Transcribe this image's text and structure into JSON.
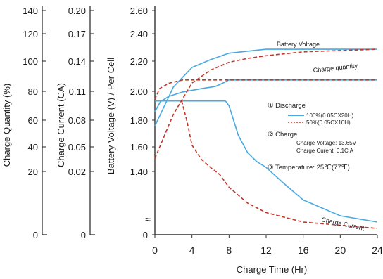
{
  "chart_data": {
    "type": "line",
    "title": "",
    "xlabel": "Charge Time (Hr)",
    "x_ticks": [
      "0",
      "4",
      "8",
      "12",
      "16",
      "20",
      "24"
    ],
    "xlim": [
      0,
      24
    ],
    "y_axes": [
      {
        "label": "Charge Quantity (%)",
        "ticks": [
          "0",
          "20",
          "40",
          "60",
          "80",
          "100",
          "120",
          "140"
        ]
      },
      {
        "label": "Charge Current (CA)",
        "ticks": [
          "0",
          "0.02",
          "0.05",
          "0.08",
          "0.11",
          "0.14",
          "0.17",
          "0.20"
        ]
      },
      {
        "label": "Battery Voltage (V) / Per Cell",
        "ticks": [
          "0",
          "1.40",
          "1.60",
          "1.80",
          "2.00",
          "2.20",
          "2.40",
          "2.60"
        ],
        "scale_break": "≈"
      }
    ],
    "annotations": {
      "battery_voltage": "Battery Voltage",
      "charge_quantity": "Charge quantity",
      "charge_current": "Charge Current",
      "discharge_title": "① Discharge",
      "discharge_100": "100%(0.05CX20H)",
      "discharge_50": "50%(0.05CX10H)",
      "charge_title": "② Charge",
      "charge_voltage": "Charge Voltage: 13.65V",
      "charge_current_spec": "Charge Curent:  0.1C A",
      "temperature": "③ Temperature: 25℃(77℉)"
    },
    "series": [
      {
        "name": "100%(0.05CX20H)",
        "style": "solid",
        "color": "#4aa9df",
        "curves": {
          "battery_voltage_volts": [
            [
              0,
              1.95
            ],
            [
              0.6,
              2.04
            ],
            [
              1.5,
              2.09
            ],
            [
              3,
              2.13
            ],
            [
              5,
              2.16
            ],
            [
              6.5,
              2.18
            ],
            [
              7.3,
              2.21
            ],
            [
              8,
              2.24
            ],
            [
              12,
              2.24
            ],
            [
              16,
              2.24
            ],
            [
              20,
              2.24
            ],
            [
              24,
              2.24
            ]
          ],
          "charge_quantity_percent": [
            [
              0,
              55
            ],
            [
              2,
              85
            ],
            [
              4,
              100
            ],
            [
              6,
              106
            ],
            [
              7.6,
              110
            ],
            [
              8,
              111
            ],
            [
              12,
              114
            ],
            [
              16,
              114
            ],
            [
              20,
              114
            ],
            [
              24,
              114
            ]
          ],
          "charge_current_ca": [
            [
              0,
              0.1
            ],
            [
              7.6,
              0.1
            ],
            [
              8,
              0.095
            ],
            [
              9,
              0.063
            ],
            [
              10,
              0.043
            ],
            [
              11,
              0.032
            ],
            [
              12,
              0.025
            ],
            [
              14,
              0.016
            ],
            [
              16,
              0.011
            ],
            [
              20,
              0.006
            ],
            [
              24,
              0.004
            ]
          ]
        }
      },
      {
        "name": "50%(0.05CX10H)",
        "style": "dashed",
        "color": "#c0392b",
        "curves": {
          "battery_voltage_volts": [
            [
              0,
              2.06
            ],
            [
              0.5,
              2.16
            ],
            [
              1.5,
              2.21
            ],
            [
              3,
              2.24
            ],
            [
              4,
              2.24
            ],
            [
              6,
              2.24
            ],
            [
              8,
              2.24
            ],
            [
              12,
              2.24
            ],
            [
              16,
              2.24
            ],
            [
              20,
              2.24
            ],
            [
              24,
              2.24
            ]
          ],
          "charge_quantity_percent": [
            [
              0,
              30
            ],
            [
              2,
              64
            ],
            [
              4,
              88
            ],
            [
              6,
              98
            ],
            [
              8,
              104
            ],
            [
              10,
              107
            ],
            [
              12,
              109
            ],
            [
              16,
              112
            ],
            [
              20,
              113
            ],
            [
              24,
              114
            ]
          ],
          "charge_current_ca": [
            [
              2.9,
              0.1
            ],
            [
              3.5,
              0.077
            ],
            [
              4,
              0.052
            ],
            [
              5,
              0.035
            ],
            [
              6,
              0.025
            ],
            [
              7,
              0.019
            ],
            [
              8,
              0.015
            ],
            [
              10,
              0.01
            ],
            [
              12,
              0.007
            ],
            [
              16,
              0.004
            ],
            [
              20,
              0.003
            ],
            [
              24,
              0.002
            ]
          ]
        }
      }
    ],
    "legend_position": "right"
  }
}
